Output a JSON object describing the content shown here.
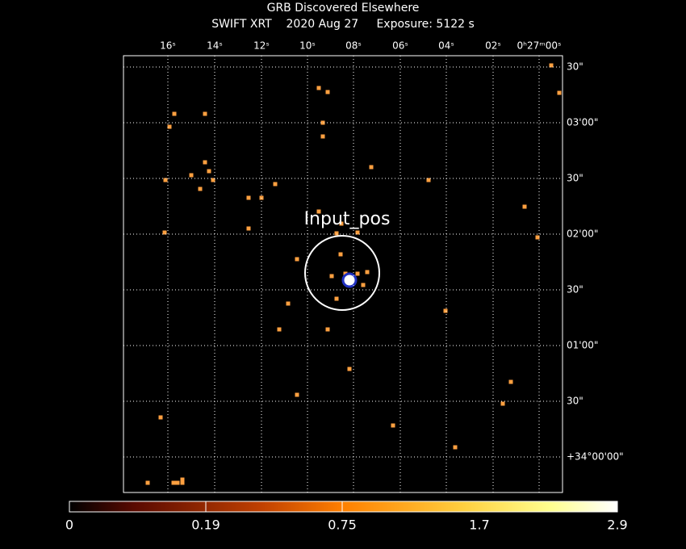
{
  "header": {
    "title": "GRB Discovered Elsewhere",
    "subtitle": "SWIFT XRT    2020 Aug 27     Exposure: 5122 s"
  },
  "ra_ticks": [
    "16ˢ",
    "14ˢ",
    "12ˢ",
    "10ˢ",
    "08ˢ",
    "06ˢ",
    "04ˢ",
    "02ˢ",
    "0ʰ27ᵐ00ˢ"
  ],
  "dec_ticks": [
    "30\"",
    "03'00\"",
    "30\"",
    "02'00\"",
    "30\"",
    "01'00\"",
    "30\"",
    "+34°00'00\""
  ],
  "annotation": "Input_pos",
  "colorbar_labels": [
    "0",
    "0.19",
    "0.75",
    "1.7",
    "2.9"
  ]
}
